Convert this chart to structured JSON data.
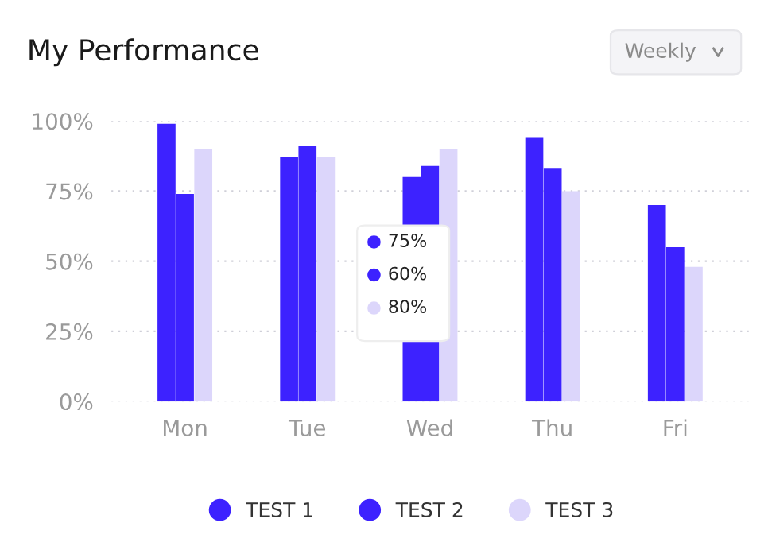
{
  "chart_data": {
    "type": "bar",
    "title": "My Performance",
    "categories": [
      "Mon",
      "Tue",
      "Wed",
      "Thu",
      "Fri"
    ],
    "series": [
      {
        "name": "TEST 1",
        "color": "#3d22ff",
        "values": [
          99,
          87,
          80,
          94,
          70
        ]
      },
      {
        "name": "TEST 2",
        "color": "#3d22ff",
        "values": [
          74,
          91,
          84,
          83,
          55
        ]
      },
      {
        "name": "TEST 3",
        "color": "#dcd6fb",
        "values": [
          90,
          87,
          90,
          75,
          48
        ]
      }
    ],
    "ylim": [
      0,
      100
    ],
    "yticks": [
      {
        "value": 0,
        "label": "0%"
      },
      {
        "value": 25,
        "label": "25%"
      },
      {
        "value": 50,
        "label": "50%"
      },
      {
        "value": 75,
        "label": "75%"
      },
      {
        "value": 100,
        "label": "100%"
      }
    ],
    "grid": "y",
    "legend": "bottom",
    "annotations": [
      "Weekly",
      "75%",
      "60%",
      "80%"
    ]
  }
}
